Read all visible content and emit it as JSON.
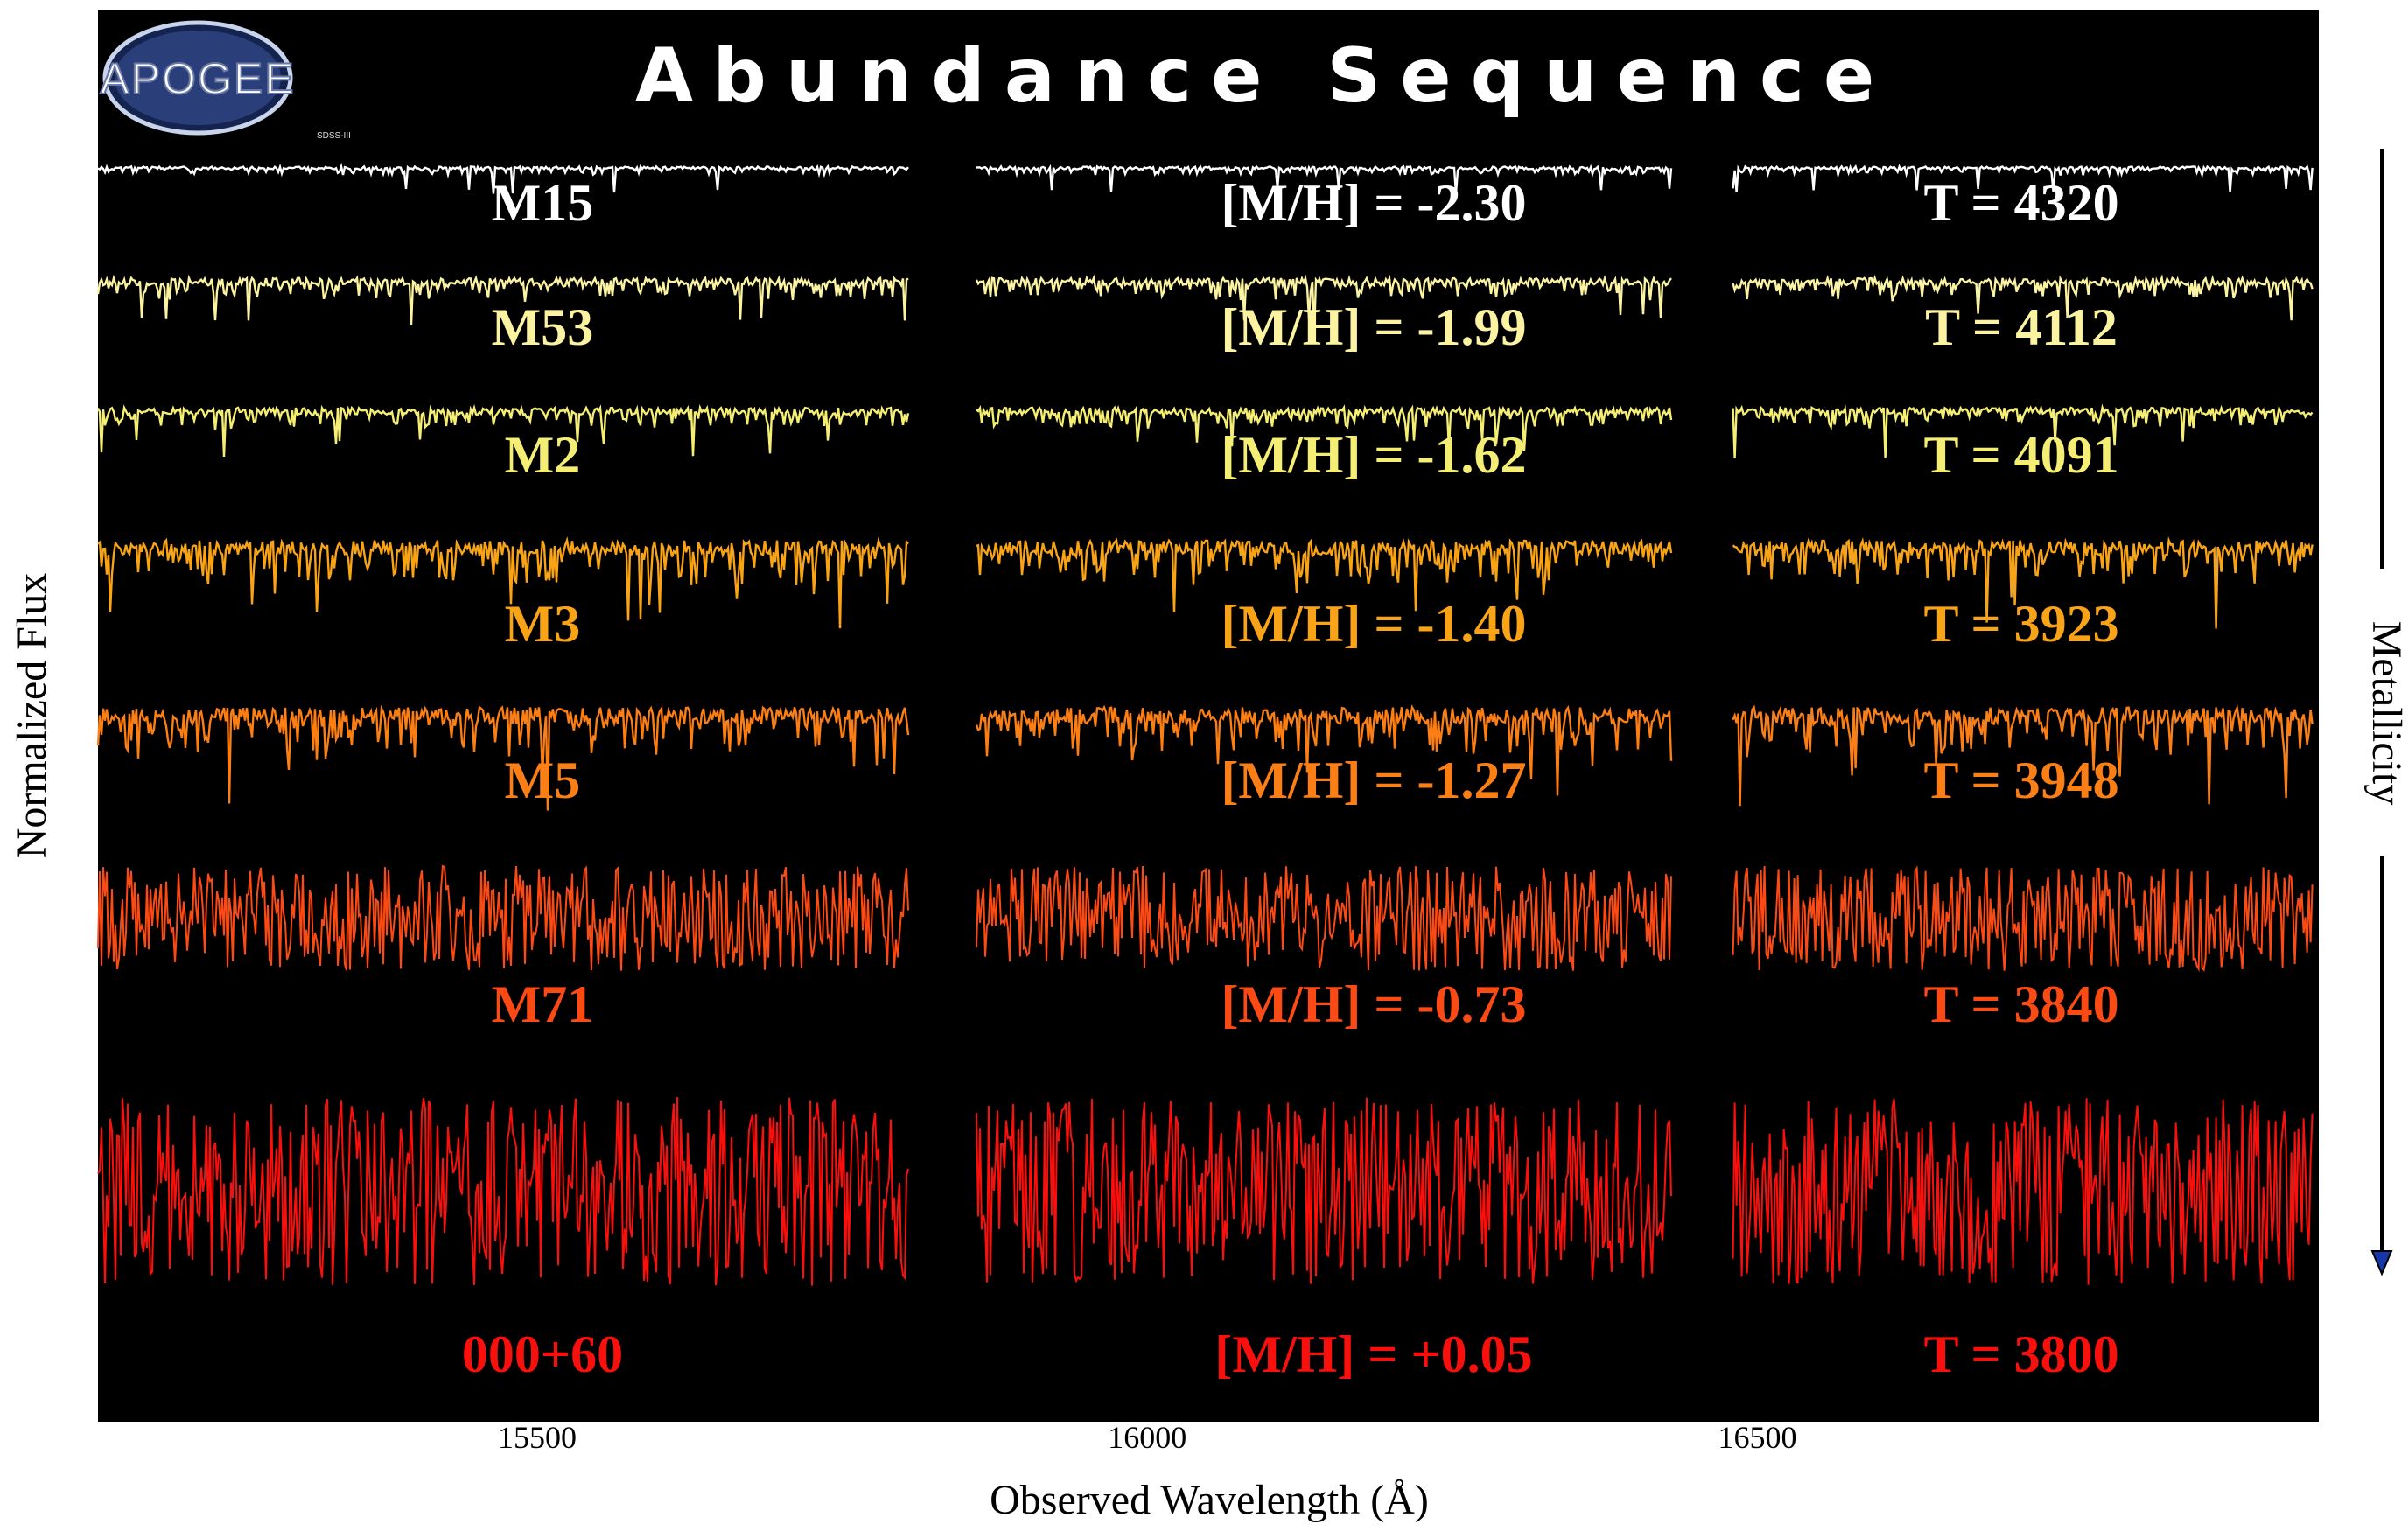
{
  "chart_data": {
    "type": "line",
    "title": "Abundance Sequence",
    "xlabel": "Observed Wavelength (Å)",
    "ylabel": "Normalized Flux",
    "arrow_label": "Metallicity",
    "xlim": [
      15140,
      16960
    ],
    "x_ticks": [
      15500,
      16000,
      16500
    ],
    "chips": [
      [
        15140,
        15805
      ],
      [
        15860,
        16430
      ],
      [
        16480,
        16955
      ]
    ],
    "grid": false,
    "background": "#000000",
    "series": [
      {
        "name": "M15",
        "mh": "[M/H] = -2.30",
        "teff": "T = 4320",
        "color": "#ffffff",
        "depth": 0.35
      },
      {
        "name": "M53",
        "mh": "[M/H] = -1.99",
        "teff": "T = 4112",
        "color": "#fbf3a2",
        "depth": 0.55
      },
      {
        "name": "M2",
        "mh": "[M/H] = -1.62",
        "teff": "T = 4091",
        "color": "#f5ee74",
        "depth": 0.6
      },
      {
        "name": "M3",
        "mh": "[M/H] = -1.40",
        "teff": "T = 3923",
        "color": "#f9a417",
        "depth": 0.75
      },
      {
        "name": "M5",
        "mh": "[M/H] = -1.27",
        "teff": "T = 3948",
        "color": "#fb7f14",
        "depth": 0.8
      },
      {
        "name": "M71",
        "mh": "[M/H] = -0.73",
        "teff": "T = 3840",
        "color": "#fb4a14",
        "depth": 1.0
      },
      {
        "name": "000+60",
        "mh": "[M/H] = +0.05",
        "teff": "T = 3800",
        "color": "#f9100c",
        "depth": 1.0
      }
    ]
  },
  "logo": {
    "text": "APOGEE",
    "caption": "SDSS-III"
  }
}
